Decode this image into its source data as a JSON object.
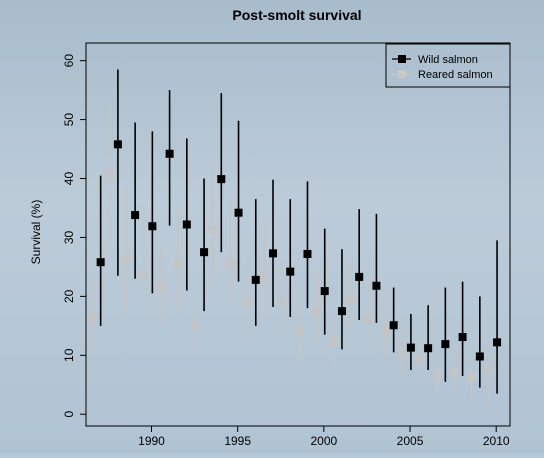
{
  "chart_data": {
    "type": "scatter",
    "title": "Post-smolt survival",
    "xlabel": "",
    "ylabel": "Survival (%)",
    "xlim": [
      1986.2,
      2010.8
    ],
    "ylim": [
      -2,
      63
    ],
    "x_ticks": [
      1990,
      1995,
      2000,
      2005,
      2010
    ],
    "y_ticks": [
      0,
      10,
      20,
      30,
      40,
      50,
      60
    ],
    "grid": false,
    "legend_position": "top-right",
    "series": [
      {
        "name": "Wild salmon",
        "color": "#000000",
        "marker": "square",
        "x": [
          1987,
          1988,
          1989,
          1990,
          1991,
          1992,
          1993,
          1994,
          1995,
          1996,
          1997,
          1998,
          1999,
          2000,
          2001,
          2002,
          2003,
          2004,
          2005,
          2006,
          2007,
          2008,
          2009,
          2010
        ],
        "y": [
          25.8,
          45.8,
          33.8,
          31.9,
          44.2,
          32.2,
          27.5,
          39.9,
          34.2,
          22.8,
          27.3,
          24.2,
          27.2,
          20.9,
          17.5,
          23.3,
          21.8,
          15.1,
          11.3,
          11.2,
          11.9,
          13.1,
          9.8,
          12.2
        ],
        "lower": [
          15.0,
          23.5,
          23.0,
          20.5,
          32.0,
          21.0,
          17.5,
          27.5,
          22.5,
          15.0,
          18.2,
          16.5,
          18.0,
          13.5,
          11.0,
          16.0,
          15.5,
          10.5,
          7.5,
          7.5,
          5.5,
          6.5,
          4.5,
          3.5
        ],
        "upper": [
          40.5,
          58.5,
          49.5,
          48.0,
          55.0,
          46.8,
          40.0,
          54.5,
          49.8,
          36.5,
          39.8,
          36.5,
          39.5,
          31.5,
          28.0,
          34.8,
          34.0,
          21.5,
          17.0,
          18.5,
          21.5,
          22.5,
          20.0,
          29.5
        ]
      },
      {
        "name": "Reared salmon",
        "color": "#bdbdbd",
        "marker": "square",
        "x": [
          1987,
          1988,
          1989,
          1990,
          1991,
          1992,
          1993,
          1994,
          1995,
          1996,
          1997,
          1998,
          1999,
          2000,
          2001,
          2002,
          2003,
          2004,
          2005,
          2006,
          2007,
          2008,
          2009,
          2010
        ],
        "y": [
          16.5,
          40.8,
          26.6,
          23.9,
          21.6,
          25.6,
          14.9,
          31.4,
          25.5,
          19.0,
          23.3,
          18.8,
          14.2,
          17.5,
          12.3,
          19.3,
          16.1,
          14.2,
          10.4,
          9.4,
          6.6,
          7.2,
          6.2,
          7.6
        ],
        "lower": [
          11.0,
          29.5,
          17.0,
          15.5,
          15.5,
          17.0,
          10.0,
          23.0,
          18.0,
          12.5,
          16.0,
          13.0,
          9.0,
          12.5,
          8.0,
          14.0,
          11.0,
          10.0,
          7.0,
          6.0,
          4.0,
          4.0,
          3.0,
          1.5
        ],
        "upper": [
          23.0,
          53.0,
          38.5,
          35.5,
          28.5,
          35.5,
          21.5,
          41.0,
          36.0,
          26.5,
          32.5,
          26.0,
          21.0,
          24.5,
          17.5,
          25.5,
          23.0,
          19.0,
          14.5,
          13.5,
          11.0,
          11.5,
          10.0,
          12.0
        ]
      }
    ]
  }
}
